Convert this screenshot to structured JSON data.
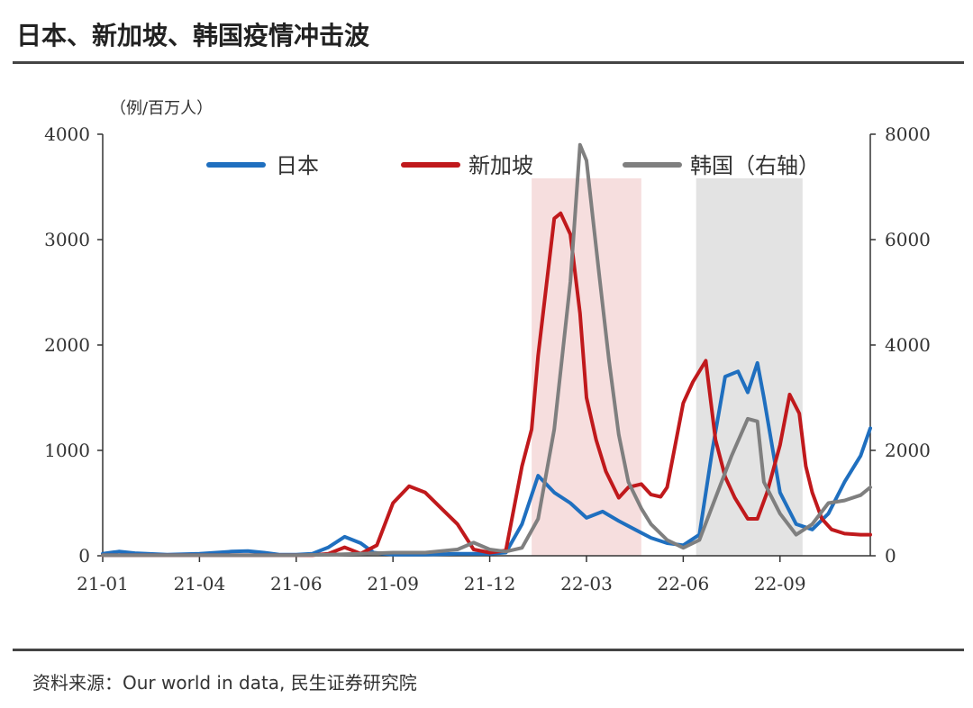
{
  "header": {
    "title": "日本、新加坡、韩国疫情冲击波"
  },
  "footer": {
    "source": "资料来源：Our world in data, 民生证券研究院"
  },
  "colors": {
    "japan": "#1f6fbf",
    "singapore": "#c0191c",
    "korea": "#7f7f7f",
    "shade_pink": "#f6dede",
    "shade_gray": "#e3e3e3"
  },
  "chart_data": {
    "type": "line",
    "title": "日本、新加坡、韩国疫情冲击波",
    "ylabel": "（例/百万人）",
    "ylim_left": [
      0,
      4000
    ],
    "ylim_right": [
      0,
      8000
    ],
    "yticks_left": [
      0,
      1000,
      2000,
      3000,
      4000
    ],
    "yticks_right": [
      0,
      2000,
      4000,
      6000,
      8000
    ],
    "xlim": [
      0,
      23.8
    ],
    "xticks": [
      {
        "pos": 0,
        "label": "21-01"
      },
      {
        "pos": 3,
        "label": "21-04"
      },
      {
        "pos": 6,
        "label": "21-06"
      },
      {
        "pos": 9,
        "label": "21-09"
      },
      {
        "pos": 12,
        "label": "21-12"
      },
      {
        "pos": 15,
        "label": "22-03"
      },
      {
        "pos": 18,
        "label": "22-06"
      },
      {
        "pos": 21,
        "label": "22-09"
      }
    ],
    "shaded_ranges": [
      {
        "x0": 13.3,
        "x1": 16.7,
        "color": "pink"
      },
      {
        "x0": 18.4,
        "x1": 21.7,
        "color": "gray"
      }
    ],
    "series": [
      {
        "name": "日本",
        "axis": "left",
        "color": "#1f6fbf",
        "x": [
          0,
          0.5,
          1,
          2,
          3,
          4,
          4.5,
          5,
          5.5,
          6,
          6.5,
          7,
          7.5,
          8,
          8.4,
          9,
          10,
          11,
          12,
          12.5,
          13,
          13.5,
          14,
          14.5,
          15,
          15.5,
          16,
          16.5,
          17,
          17.5,
          18,
          18.5,
          18.9,
          19.3,
          19.7,
          20,
          20.3,
          20.5,
          21,
          21.5,
          22,
          22.5,
          23,
          23.5,
          23.8
        ],
        "y": [
          20,
          40,
          25,
          10,
          20,
          40,
          45,
          30,
          10,
          10,
          20,
          80,
          180,
          120,
          30,
          10,
          10,
          20,
          20,
          30,
          300,
          760,
          600,
          500,
          360,
          420,
          330,
          250,
          170,
          120,
          100,
          200,
          1000,
          1700,
          1750,
          1550,
          1830,
          1500,
          600,
          300,
          250,
          400,
          700,
          950,
          1210
        ]
      },
      {
        "name": "新加坡",
        "axis": "left",
        "color": "#c0191c",
        "x": [
          0,
          1,
          2,
          3,
          4,
          5,
          6,
          6.5,
          7,
          7.5,
          8,
          8.5,
          9,
          9.5,
          10,
          10.5,
          11,
          11.5,
          12,
          12.5,
          13,
          13.3,
          13.5,
          14,
          14.2,
          14.5,
          14.8,
          15,
          15.3,
          15.6,
          16,
          16.3,
          16.7,
          17,
          17.3,
          17.5,
          18,
          18.3,
          18.7,
          19,
          19.3,
          19.6,
          20,
          20.3,
          20.6,
          21,
          21.3,
          21.6,
          21.8,
          22,
          22.3,
          22.6,
          23,
          23.5,
          23.8
        ],
        "y": [
          5,
          5,
          5,
          5,
          5,
          5,
          5,
          5,
          20,
          80,
          20,
          100,
          500,
          660,
          600,
          450,
          300,
          60,
          30,
          50,
          850,
          1200,
          1900,
          3200,
          3250,
          3050,
          2300,
          1500,
          1100,
          800,
          550,
          650,
          680,
          580,
          560,
          650,
          1450,
          1650,
          1850,
          1100,
          750,
          550,
          350,
          350,
          600,
          1050,
          1530,
          1350,
          850,
          600,
          350,
          250,
          210,
          200,
          200
        ]
      },
      {
        "name": "韩国（右轴）",
        "axis": "right",
        "color": "#7f7f7f",
        "x": [
          0,
          1,
          2,
          3,
          4,
          5,
          6,
          7,
          8,
          9,
          10,
          11,
          11.5,
          12,
          12.5,
          13,
          13.5,
          14,
          14.5,
          14.8,
          15,
          15.2,
          15.4,
          15.7,
          16,
          16.3,
          16.7,
          17,
          17.5,
          18,
          18.5,
          19,
          19.5,
          20,
          20.3,
          20.5,
          21,
          21.5,
          22,
          22.5,
          23,
          23.5,
          23.8
        ],
        "y": [
          10,
          10,
          10,
          10,
          10,
          10,
          10,
          20,
          40,
          60,
          60,
          120,
          250,
          120,
          80,
          150,
          700,
          2400,
          5200,
          7800,
          7500,
          6400,
          5300,
          3700,
          2300,
          1400,
          900,
          600,
          300,
          150,
          300,
          1100,
          1900,
          2600,
          2550,
          1400,
          800,
          400,
          600,
          1000,
          1050,
          1150,
          1300
        ]
      }
    ]
  }
}
